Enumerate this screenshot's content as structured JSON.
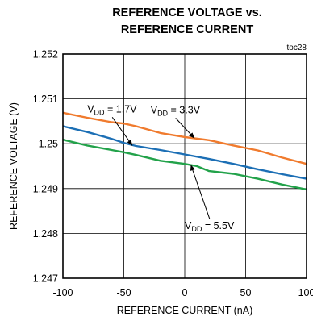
{
  "chart_data": {
    "type": "line",
    "title_lines": [
      "REFERENCE VOLTAGE vs.",
      "REFERENCE CURRENT"
    ],
    "figure_id": "toc28",
    "xlabel": "REFERENCE CURRENT (nA)",
    "ylabel": "REFERENCE VOLTAGE (V)",
    "xlim": [
      -100,
      100
    ],
    "ylim": [
      1.247,
      1.252
    ],
    "xticks": [
      -100,
      -50,
      0,
      50,
      100
    ],
    "yticks": [
      1.247,
      1.248,
      1.249,
      1.25,
      1.251,
      1.252
    ],
    "xtick_labels": [
      "-100",
      "-50",
      "0",
      "50",
      "100"
    ],
    "ytick_labels": [
      "1.247",
      "1.248",
      "1.249",
      "1.25",
      "1.251",
      "1.252"
    ],
    "grid": true,
    "series": [
      {
        "name": "VDD = 3.3V",
        "label_main": "V",
        "label_sub": "DD",
        "label_tail": " = 3.3V",
        "color": "#f07b2e",
        "x": [
          -100,
          -80,
          -60,
          -50,
          -40,
          -20,
          0,
          20,
          40,
          60,
          80,
          100
        ],
        "y": [
          1.25069,
          1.25058,
          1.25048,
          1.25045,
          1.25039,
          1.25024,
          1.25015,
          1.25008,
          1.24996,
          1.24985,
          1.24969,
          1.24955
        ]
      },
      {
        "name": "VDD = 1.7V",
        "label_main": "V",
        "label_sub": "DD",
        "label_tail": " = 1.7V",
        "color": "#1c6fb5",
        "x": [
          -100,
          -80,
          -60,
          -50,
          -40,
          -20,
          0,
          20,
          40,
          60,
          80,
          100
        ],
        "y": [
          1.25039,
          1.25026,
          1.25011,
          1.25002,
          1.24995,
          1.24986,
          1.24976,
          1.24966,
          1.24955,
          1.24943,
          1.24932,
          1.24922
        ]
      },
      {
        "name": "VDD = 5.5V",
        "label_main": "V",
        "label_sub": "DD",
        "label_tail": " = 5.5V",
        "color": "#22a24a",
        "x": [
          -100,
          -80,
          -60,
          -50,
          -40,
          -20,
          0,
          10,
          20,
          40,
          60,
          80,
          100
        ],
        "y": [
          1.25009,
          1.24996,
          1.24986,
          1.24981,
          1.24975,
          1.24962,
          1.24955,
          1.2495,
          1.24939,
          1.24933,
          1.24922,
          1.24909,
          1.24898
        ]
      }
    ],
    "annotations": [
      {
        "series": 1,
        "label_x": -80,
        "label_y": 1.2507,
        "arrow_x": -43,
        "arrow_y": 1.24996
      },
      {
        "series": 0,
        "label_x": -28,
        "label_y": 1.25068,
        "arrow_x": 8,
        "arrow_y": 1.25012
      },
      {
        "series": 2,
        "label_x": 0,
        "label_y": 1.2481,
        "arrow_x": 5,
        "arrow_y": 1.24953
      }
    ]
  }
}
